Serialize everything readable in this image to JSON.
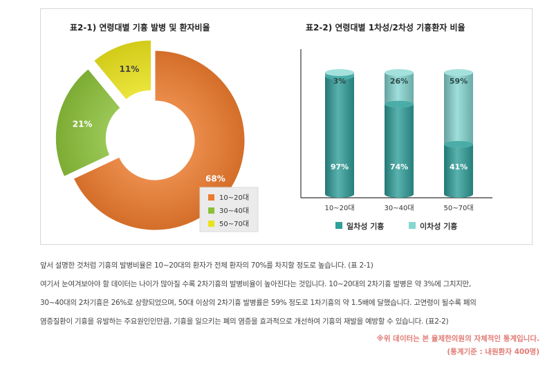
{
  "chart_data": [
    {
      "type": "pie",
      "title": "표2-1) 연령대별 기흉 발병 및 환자비율",
      "categories": [
        "10~20대",
        "30~40대",
        "50~70대"
      ],
      "values": [
        68,
        21,
        11
      ],
      "value_labels": [
        "68%",
        "21%",
        "11%"
      ],
      "colors": [
        "#ea7a2e",
        "#8bbf3a",
        "#e9e21c"
      ],
      "legend_position": "bottom-right",
      "style": "donut, exploded slices"
    },
    {
      "type": "bar",
      "title": "표2-2) 연령대별 1차성/2차성 기흉환자 비율",
      "categories": [
        "10~20대",
        "30~40대",
        "50~70대"
      ],
      "series": [
        {
          "name": "일차성 기흉",
          "values": [
            97,
            74,
            41
          ],
          "labels": [
            "97%",
            "74%",
            "41%"
          ],
          "color": "#2f9f9a"
        },
        {
          "name": "이차성 기흉",
          "values": [
            3,
            26,
            59
          ],
          "labels": [
            "3%",
            "26%",
            "59%"
          ],
          "color": "#86d7d2"
        }
      ],
      "stacked": true,
      "ylim": [
        0,
        100
      ],
      "legend_position": "bottom",
      "style": "3D cylinders"
    }
  ],
  "text": {
    "lines": [
      "앞서 설명한 것처럼 기흉의 발병비율은 10~20대의 환자가 전체 환자의 70%를 차지할 정도로 높습니다. (표 2-1)",
      "여기서 눈여겨보아야 할 데이터는 나이가 많아질 수록 2차기흉의 발병비율이 높아진다는 것입니다. 10~20대의 2차기흉 발병은 약 3%에 그치지만,",
      "30~40대의 2차기흉은 26%로 상향되었으며, 50대 이상의 2차기흉 발병률은 59% 정도로 1차기흉의 약 1.5배에 달했습니다. 고연령이 될수록 폐의",
      "염증질환이 기흉을 유발하는 주요원인인만큼, 기흉을 일으키는 폐의 염증을 효과적으로 개선하여 기흉의 재발을 예방할 수 있습니다. (표2-2)"
    ],
    "note1": "※위 데이터는 본 율제한의원의 자체적인 통계입니다.",
    "note2": "(통계기준 : 내원환자 400명)"
  }
}
